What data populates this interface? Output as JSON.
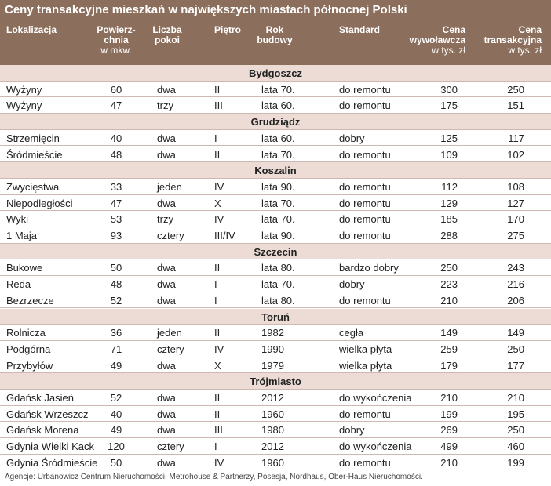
{
  "title": "Ceny transakcyjne mieszkań w największych miastach północnej Polski",
  "columns": [
    [
      "Lokalizacja"
    ],
    [
      "Powierz-",
      "chnia",
      "w mkw."
    ],
    [
      "Liczba",
      "pokoi"
    ],
    [
      "Piętro"
    ],
    [
      "Rok",
      "budowy"
    ],
    [
      "Standard"
    ],
    [
      "Cena",
      "wywoławcza",
      "w tys. zł"
    ],
    [
      "Cena",
      "transakcyjna",
      "w tys. zł"
    ]
  ],
  "sections": [
    {
      "city": "Bydgoszcz",
      "rows": [
        [
          "Wyżyny",
          60,
          "dwa",
          "II",
          "lata 70.",
          "do remontu",
          300,
          250
        ],
        [
          "Wyżyny",
          47,
          "trzy",
          "III",
          "lata 60.",
          "do remontu",
          175,
          151
        ]
      ]
    },
    {
      "city": "Grudziądz",
      "rows": [
        [
          "Strzemięcin",
          40,
          "dwa",
          "I",
          "lata 60.",
          "dobry",
          125,
          117
        ],
        [
          "Śródmieście",
          48,
          "dwa",
          "II",
          "lata 70.",
          "do remontu",
          109,
          102
        ]
      ]
    },
    {
      "city": "Koszalin",
      "rows": [
        [
          "Zwycięstwa",
          33,
          "jeden",
          "IV",
          "lata 90.",
          "do remontu",
          112,
          108
        ],
        [
          "Niepodległości",
          47,
          "dwa",
          "X",
          "lata 70.",
          "do remontu",
          129,
          127
        ],
        [
          "Wyki",
          53,
          "trzy",
          "IV",
          "lata 70.",
          "do remontu",
          185,
          170
        ],
        [
          "1 Maja",
          93,
          "cztery",
          "III/IV",
          "lata 90.",
          "do remontu",
          288,
          275
        ]
      ]
    },
    {
      "city": "Szczecin",
      "rows": [
        [
          "Bukowe",
          50,
          "dwa",
          "II",
          "lata 80.",
          "bardzo dobry",
          250,
          243
        ],
        [
          "Reda",
          48,
          "dwa",
          "I",
          "lata 70.",
          "dobry",
          223,
          216
        ],
        [
          "Bezrzecze",
          52,
          "dwa",
          "I",
          "lata 80.",
          "do remontu",
          210,
          206
        ]
      ]
    },
    {
      "city": "Toruń",
      "rows": [
        [
          "Rolnicza",
          36,
          "jeden",
          "II",
          "1982",
          "cegła",
          149,
          149
        ],
        [
          "Podgórna",
          71,
          "cztery",
          "IV",
          "1990",
          "wielka płyta",
          259,
          250
        ],
        [
          "Przybyłów",
          49,
          "dwa",
          "X",
          "1979",
          "wielka płyta",
          179,
          177
        ]
      ]
    },
    {
      "city": "Trójmiasto",
      "rows": [
        [
          "Gdańsk Jasień",
          52,
          "dwa",
          "II",
          "2012",
          "do wykończenia",
          210,
          210
        ],
        [
          "Gdańsk Wrzeszcz",
          40,
          "dwa",
          "II",
          "1960",
          "do remontu",
          199,
          195
        ],
        [
          "Gdańsk Morena",
          49,
          "dwa",
          "III",
          "1980",
          "dobry",
          269,
          250
        ],
        [
          "Gdynia Wielki Kack",
          120,
          "cztery",
          "I",
          "2012",
          "do wykończenia",
          499,
          460
        ],
        [
          "Gdynia Śródmieście",
          50,
          "dwa",
          "IV",
          "1960",
          "do remontu",
          210,
          199
        ]
      ]
    }
  ],
  "source": "Agencje: Urbanowicz Centrum Nieruchomości, Metrohouse & Partnerzy, Posesja, Nordhaus, Ober-Haus Nieruchomości."
}
